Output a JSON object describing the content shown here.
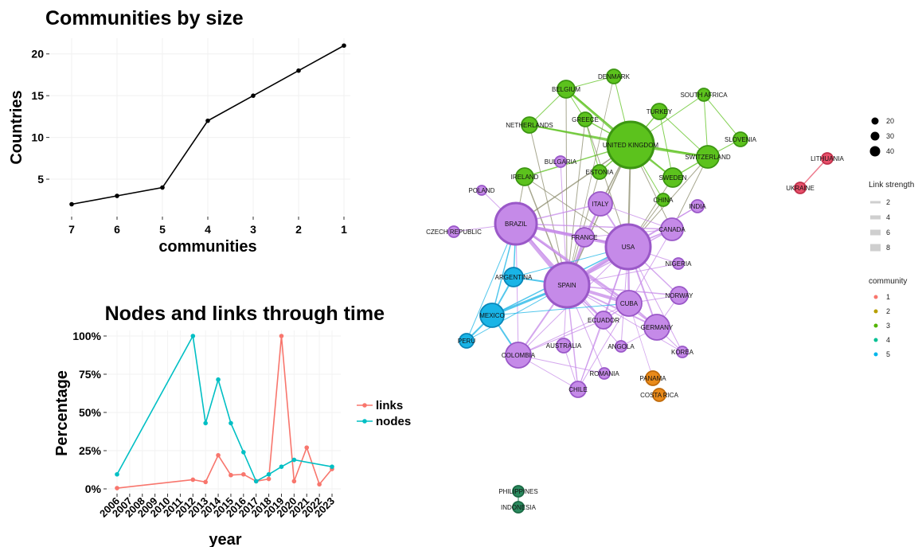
{
  "chart_data": [
    {
      "type": "line",
      "title": "Communities by size",
      "xlabel": "communities",
      "ylabel": "Countries",
      "x": [
        7,
        6,
        5,
        4,
        3,
        2,
        1
      ],
      "y": [
        2,
        3,
        4,
        12,
        15,
        18,
        21
      ],
      "x_ticks": [
        "7",
        "6",
        "5",
        "4",
        "3",
        "2",
        "1"
      ],
      "y_ticks": [
        "5",
        "10",
        "15",
        "20"
      ],
      "y_tick_values": [
        5,
        10,
        15,
        20
      ],
      "ylim": [
        1,
        21.5
      ],
      "line_color": "#000000"
    },
    {
      "type": "line",
      "title": "Nodes and links through time",
      "xlabel": "year",
      "ylabel": "Percentage",
      "categories": [
        "2006",
        "2007",
        "2008",
        "2009",
        "2010",
        "2011",
        "2012",
        "2013",
        "2014",
        "2015",
        "2016",
        "2017",
        "2018",
        "2019",
        "2020",
        "2021",
        "2022",
        "2023"
      ],
      "y_ticks": [
        "0%",
        "25%",
        "50%",
        "75%",
        "100%"
      ],
      "y_tick_values": [
        0,
        25,
        50,
        75,
        100
      ],
      "ylim": [
        -2,
        102
      ],
      "series": [
        {
          "name": "links",
          "color": "#F8766D",
          "points": [
            [
              "2006",
              0.5
            ],
            [
              "2012",
              6
            ],
            [
              "2013",
              4.5
            ],
            [
              "2014",
              22
            ],
            [
              "2015",
              9
            ],
            [
              "2016",
              9.5
            ],
            [
              "2017",
              5
            ],
            [
              "2018",
              6.5
            ],
            [
              "2019",
              100
            ],
            [
              "2020",
              5
            ],
            [
              "2021",
              27
            ],
            [
              "2022",
              3
            ],
            [
              "2023",
              13
            ]
          ]
        },
        {
          "name": "nodes",
          "color": "#00BFC4",
          "points": [
            [
              "2006",
              9.5
            ],
            [
              "2012",
              100
            ],
            [
              "2013",
              43
            ],
            [
              "2014",
              71.5
            ],
            [
              "2015",
              43
            ],
            [
              "2016",
              24
            ],
            [
              "2017",
              5
            ],
            [
              "2018",
              9.5
            ],
            [
              "2019",
              14.5
            ],
            [
              "2020",
              19
            ],
            [
              "2023",
              14.5
            ]
          ]
        }
      ]
    },
    {
      "type": "network",
      "nodes": [
        {
          "label": "DENMARK",
          "community": 3
        },
        {
          "label": "BELGIUM",
          "community": 3
        },
        {
          "label": "SOUTH AFRICA",
          "community": 3
        },
        {
          "label": "TURKEY",
          "community": 3
        },
        {
          "label": "GREECE",
          "community": 3
        },
        {
          "label": "NETHERLANDS",
          "community": 3
        },
        {
          "label": "UNITED KINGDOM",
          "community": 3
        },
        {
          "label": "SLOVENIA",
          "community": 3
        },
        {
          "label": "BULGARIA",
          "community": 1
        },
        {
          "label": "SWITZERLAND",
          "community": 3
        },
        {
          "label": "ESTONIA",
          "community": 3
        },
        {
          "label": "IRELAND",
          "community": 3
        },
        {
          "label": "SWEDEN",
          "community": 3
        },
        {
          "label": "CHINA",
          "community": 3
        },
        {
          "label": "POLAND",
          "community": 1
        },
        {
          "label": "ITALY",
          "community": 1
        },
        {
          "label": "INDIA",
          "community": 1
        },
        {
          "label": "BRAZIL",
          "community": 1
        },
        {
          "label": "CANADA",
          "community": 1
        },
        {
          "label": "CZECH REPUBLIC",
          "community": 1
        },
        {
          "label": "FRANCE",
          "community": 1
        },
        {
          "label": "USA",
          "community": 1
        },
        {
          "label": "NIGERIA",
          "community": 1
        },
        {
          "label": "ARGENTINA",
          "community": 5
        },
        {
          "label": "SPAIN",
          "community": 1
        },
        {
          "label": "NORWAY",
          "community": 1
        },
        {
          "label": "CUBA",
          "community": 1
        },
        {
          "label": "MEXICO",
          "community": 5
        },
        {
          "label": "ECUADOR",
          "community": 1
        },
        {
          "label": "GERMANY",
          "community": 1
        },
        {
          "label": "PERU",
          "community": 5
        },
        {
          "label": "AUSTRALIA",
          "community": 1
        },
        {
          "label": "ANGOLA",
          "community": 1
        },
        {
          "label": "KOREA",
          "community": 1
        },
        {
          "label": "COLOMBIA",
          "community": 1
        },
        {
          "label": "ROMANIA",
          "community": 1
        },
        {
          "label": "PANAMA",
          "community": 2
        },
        {
          "label": "CHILE",
          "community": 1
        },
        {
          "label": "COSTA RICA",
          "community": 2
        },
        {
          "label": "LITHUANIA",
          "community": 1
        },
        {
          "label": "UKRAINE",
          "community": 1
        },
        {
          "label": "PHILIPPINES",
          "community": 4
        },
        {
          "label": "INDONESIA",
          "community": 4
        }
      ],
      "size_legend": {
        "values": [
          "20",
          "30",
          "40"
        ]
      },
      "link_legend": {
        "title": "Link strength",
        "values": [
          "2",
          "4",
          "6",
          "8"
        ]
      },
      "community_legend": {
        "title": "community",
        "items": [
          {
            "label": "1",
            "color": "#F8766D"
          },
          {
            "label": "2",
            "color": "#B79F00"
          },
          {
            "label": "3",
            "color": "#53B400"
          },
          {
            "label": "4",
            "color": "#00C094"
          },
          {
            "label": "5",
            "color": "#00B6EB"
          }
        ]
      }
    }
  ]
}
